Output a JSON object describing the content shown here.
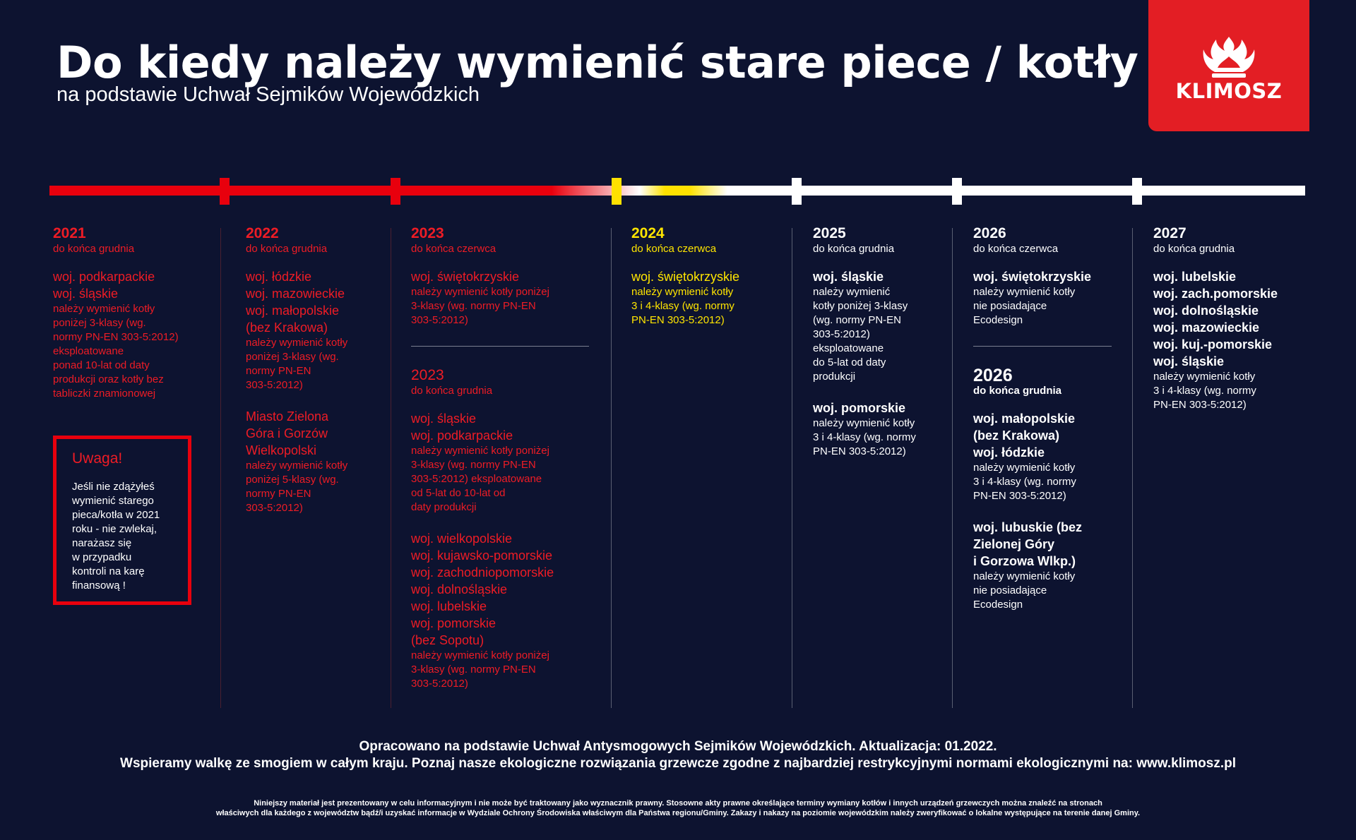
{
  "header": {
    "title": "Do kiedy należy wymienić stare piece / kotły ?",
    "subtitle": "na podstawie Uchwał Sejmików Wojewódzkich"
  },
  "logo": {
    "brand": "KLIMOSZ",
    "icon": "flame-crown-icon",
    "color": "#e31e24"
  },
  "colors": {
    "background": "#0d1330",
    "red": "#ee1c25",
    "yellow": "#ffe500",
    "white": "#ffffff"
  },
  "columns": {
    "c2021": {
      "year": "2021",
      "until": "do końca grudnia",
      "regions": [
        "woj. podkarpackie",
        "woj. śląskie"
      ],
      "desc": [
        "należy wymienić kotły",
        "poniżej 3-klasy (wg.",
        "normy PN-EN 303-5:2012)",
        "eksploatowane",
        "ponad 10-lat od daty",
        "produkcji oraz kotły bez",
        "tabliczki znamionowej"
      ]
    },
    "c2022": {
      "year": "2022",
      "until": "do końca grudnia",
      "regions": [
        "woj. łódzkie",
        "woj. mazowieckie",
        "woj. małopolskie",
        "(bez Krakowa)"
      ],
      "desc": [
        "należy wymienić kotły",
        "poniżej 3-klasy (wg.",
        "normy PN-EN",
        "303-5:2012)"
      ],
      "regions2": [
        "Miasto Zielona",
        "Góra i Gorzów",
        "Wielkopolski"
      ],
      "desc2": [
        "należy wymienić kotły",
        "poniżej 5-klasy (wg.",
        "normy PN-EN",
        "303-5:2012)"
      ]
    },
    "c2023a": {
      "year": "2023",
      "until": "do końca czerwca",
      "regions": [
        "woj. świętokrzyskie"
      ],
      "desc": [
        "należy wymienić kotły poniżej",
        "3-klasy (wg. normy PN-EN",
        "303-5:2012)"
      ]
    },
    "c2023b": {
      "year": "2023",
      "until": "do końca grudnia",
      "regions": [
        "woj. śląskie",
        "woj. podkarpackie"
      ],
      "desc": [
        "należy wymienić kotły poniżej",
        "3-klasy (wg. normy PN-EN",
        "303-5:2012) eksploatowane",
        "od 5-lat do 10-lat od",
        "daty produkcji"
      ],
      "regions2": [
        "woj. wielkopolskie",
        "woj. kujawsko-pomorskie",
        "woj. zachodniopomorskie",
        "woj. dolnośląskie",
        "woj. lubelskie",
        "woj. pomorskie",
        "(bez Sopotu)"
      ],
      "desc2": [
        "należy wymienić kotły poniżej",
        "3-klasy (wg. normy PN-EN",
        "303-5:2012)"
      ]
    },
    "c2024": {
      "year": "2024",
      "until": "do końca czerwca",
      "regions": [
        "woj. świętokrzyskie"
      ],
      "desc": [
        "należy wymienić kotły",
        "3 i 4-klasy (wg. normy",
        "PN-EN 303-5:2012)"
      ]
    },
    "c2025": {
      "year": "2025",
      "until": "do końca grudnia",
      "regions": [
        "woj. śląskie"
      ],
      "desc": [
        "należy wymienić",
        "kotły poniżej 3-klasy",
        "(wg. normy PN-EN",
        "303-5:2012)",
        "eksploatowane",
        "do 5-lat od daty",
        "produkcji"
      ],
      "regions2": [
        "woj. pomorskie"
      ],
      "desc2": [
        "należy wymienić kotły",
        "3 i 4-klasy (wg. normy",
        "PN-EN 303-5:2012)"
      ]
    },
    "c2026a": {
      "year": "2026",
      "until": "do końca czerwca",
      "regions": [
        "woj. świętokrzyskie"
      ],
      "desc": [
        "należy wymienić kotły",
        "nie posiadające",
        "Ecodesign"
      ]
    },
    "c2026b": {
      "year": "2026",
      "until": "do końca grudnia",
      "regions": [
        "woj. małopolskie",
        "(bez Krakowa)",
        "woj. łódzkie"
      ],
      "desc": [
        "należy wymienić kotły",
        "3 i 4-klasy (wg. normy",
        "PN-EN 303-5:2012)"
      ],
      "regions2": [
        "woj. lubuskie (bez",
        "Zielonej Góry",
        "i Gorzowa Wlkp.)"
      ],
      "desc2": [
        "należy wymienić kotły",
        "nie posiadające",
        "Ecodesign"
      ]
    },
    "c2027": {
      "year": "2027",
      "until": "do końca grudnia",
      "regions": [
        "woj. lubelskie",
        "woj. zach.pomorskie",
        "woj. dolnośląskie",
        "woj. mazowieckie",
        "woj. kuj.-pomorskie",
        "woj. śląskie"
      ],
      "desc": [
        "należy wymienić kotły",
        "3 i 4-klasy (wg. normy",
        "PN-EN 303-5:2012)"
      ]
    }
  },
  "warning": {
    "title": "Uwaga!",
    "lines": [
      "Jeśli nie zdążyłeś",
      "wymienić starego",
      "pieca/kotła w 2021",
      "roku - nie zwlekaj,",
      "narażasz się",
      "w przypadku",
      "kontroli na karę",
      "finansową !"
    ]
  },
  "footer": {
    "line1": "Opracowano na podstawie Uchwał Antysmogowych Sejmików Wojewódzkich. Aktualizacja: 01.2022.",
    "line2": "Wspieramy walkę ze smogiem w całym kraju. Poznaj nasze ekologiczne rozwiązania grzewcze zgodne z najbardziej restrykcyjnymi normami ekologicznymi na: www.klimosz.pl",
    "disclaimer1": "Niniejszy materiał jest prezentowany w celu informacyjnym i nie może być traktowany jako wyznacznik prawny. Stosowne akty prawne określające terminy wymiany kotłów i innych urządzeń grzewczych można znaleźć na stronach",
    "disclaimer2": "właściwych dla każdego z województw bądź/i uzyskać informacje w Wydziale Ochrony Środowiska właściwym dla Państwa regionu/Gminy. Zakazy i nakazy na poziomie wojewódzkim należy zweryfikować o lokalne występujące na terenie danej Gminy."
  }
}
